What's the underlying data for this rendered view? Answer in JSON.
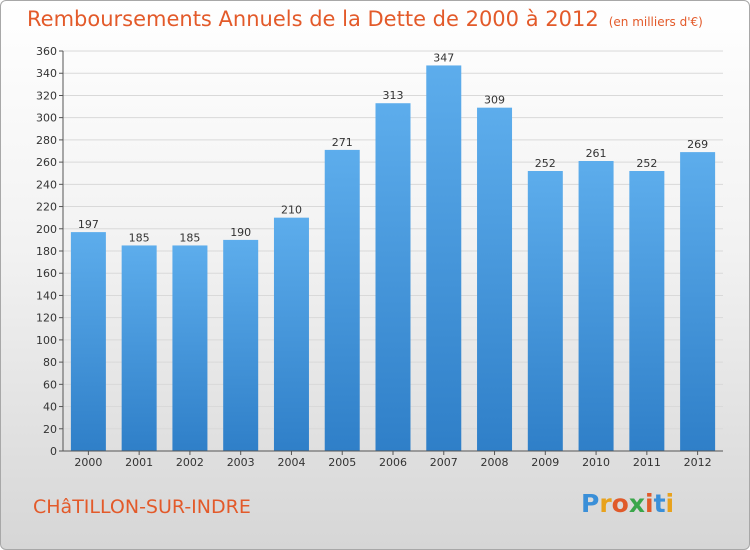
{
  "header": {
    "title": "Remboursements Annuels de la Dette de 2000 à 2012",
    "subtitle": "(en milliers d'€)"
  },
  "footer": {
    "city": "CHâTILLON-SUR-INDRE",
    "logo_letters": [
      "P",
      "r",
      "o",
      "x",
      "i",
      "t",
      "i"
    ],
    "logo_colors": [
      "#3a8fd8",
      "#e8a21c",
      "#e05a2a",
      "#3aa64a",
      "#e05a2a",
      "#3a8fd8",
      "#e8a21c"
    ]
  },
  "colors": {
    "bar_light": "#5dadec",
    "bar_dark": "#2f7fc8",
    "accent": "#e35a2a",
    "grid": "#d9d9d9",
    "axis": "#555555"
  },
  "chart_data": {
    "type": "bar",
    "title": "Remboursements Annuels de la Dette de 2000 à 2012",
    "subtitle": "(en milliers d'€)",
    "xlabel": "",
    "ylabel": "",
    "categories": [
      "2000",
      "2001",
      "2002",
      "2003",
      "2004",
      "2005",
      "2006",
      "2007",
      "2008",
      "2009",
      "2010",
      "2011",
      "2012"
    ],
    "values": [
      197,
      185,
      185,
      190,
      210,
      271,
      313,
      347,
      309,
      252,
      261,
      252,
      269
    ],
    "ylim": [
      0,
      360
    ],
    "yticks": [
      0,
      20,
      40,
      60,
      80,
      100,
      120,
      140,
      160,
      180,
      200,
      220,
      240,
      260,
      280,
      300,
      320,
      340,
      360
    ],
    "grid": true,
    "legend": "none"
  }
}
